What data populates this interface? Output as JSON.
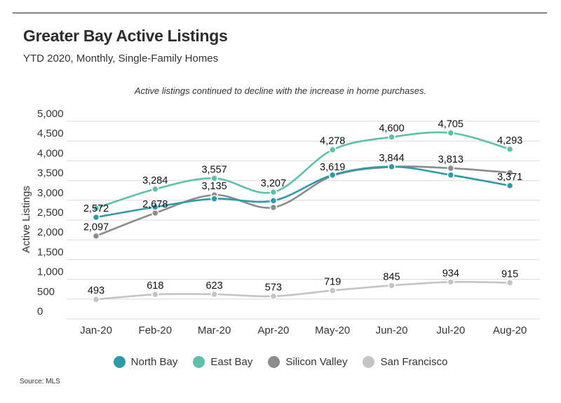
{
  "header": {
    "title": "Greater Bay Active Listings",
    "subtitle": "YTD 2020, Monthly, Single-Family Homes"
  },
  "annotation": "Active listings continued to decline with the increase in home purchases.",
  "source": "Source: MLS",
  "chart_data": {
    "type": "line",
    "title": "Greater Bay Active Listings",
    "subtitle": "YTD 2020, Monthly, Single-Family Homes",
    "xlabel": "",
    "ylabel": "Active Listings",
    "ylim": [
      0,
      5000
    ],
    "yticks": [
      0,
      500,
      1000,
      1500,
      2000,
      2500,
      3000,
      3500,
      4000,
      4500,
      5000
    ],
    "ytick_labels": [
      "0",
      "500",
      "1,000",
      "1,500",
      "2,000",
      "2,500",
      "3,000",
      "3,500",
      "4,000",
      "4,500",
      "5,000"
    ],
    "grid": "horizontal",
    "legend_position": "bottom",
    "categories": [
      "Jan-20",
      "Feb-20",
      "Mar-20",
      "Apr-20",
      "May-20",
      "Jun-20",
      "Jul-20",
      "Aug-20"
    ],
    "series": [
      {
        "name": "North Bay",
        "color": "#2e9aa8",
        "values": [
          2572,
          2830,
          3040,
          2990,
          3640,
          3850,
          3640,
          3371
        ],
        "labels": [
          "2,572",
          "",
          "",
          "",
          "",
          "",
          "",
          "3,371"
        ]
      },
      {
        "name": "East Bay",
        "color": "#5cc0aa",
        "values": [
          2800,
          3284,
          3557,
          3207,
          4278,
          4600,
          4705,
          4293
        ],
        "labels": [
          "",
          "3,284",
          "3,557",
          "3,207",
          "4,278",
          "4,600",
          "4,705",
          "4,293"
        ]
      },
      {
        "name": "Silicon Valley",
        "color": "#8c8c8c",
        "values": [
          2097,
          2678,
          3135,
          2820,
          3619,
          3844,
          3813,
          3700
        ],
        "labels": [
          "2,097",
          "2,678",
          "3,135",
          "",
          "3,619",
          "3,844",
          "3,813",
          ""
        ]
      },
      {
        "name": "San Francisco",
        "color": "#c4c4c4",
        "values": [
          493,
          618,
          623,
          573,
          719,
          845,
          934,
          915
        ],
        "labels": [
          "493",
          "618",
          "623",
          "573",
          "719",
          "845",
          "934",
          "915"
        ]
      }
    ]
  }
}
